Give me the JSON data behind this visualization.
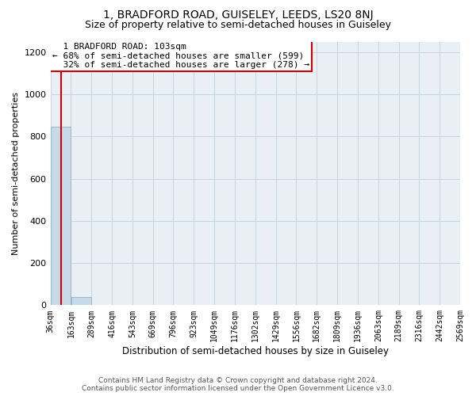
{
  "title": "1, BRADFORD ROAD, GUISELEY, LEEDS, LS20 8NJ",
  "subtitle": "Size of property relative to semi-detached houses in Guiseley",
  "xlabel": "Distribution of semi-detached houses by size in Guiseley",
  "ylabel": "Number of semi-detached properties",
  "footer_line1": "Contains HM Land Registry data © Crown copyright and database right 2024.",
  "footer_line2": "Contains public sector information licensed under the Open Government Licence v3.0.",
  "annotation_line1": "  1 BRADFORD ROAD: 103sqm",
  "annotation_line2": "← 68% of semi-detached houses are smaller (599)",
  "annotation_line3": "  32% of semi-detached houses are larger (278) →",
  "marker_value": 103,
  "bar_edges": [
    36,
    163,
    289,
    416,
    543,
    669,
    796,
    923,
    1049,
    1176,
    1302,
    1429,
    1556,
    1682,
    1809,
    1936,
    2063,
    2189,
    2316,
    2442,
    2569
  ],
  "bar_heights": [
    847,
    40,
    0,
    0,
    0,
    0,
    0,
    0,
    0,
    0,
    0,
    0,
    0,
    0,
    0,
    0,
    0,
    0,
    0,
    0
  ],
  "bar_color": "#c8d9e8",
  "bar_edgecolor": "#9ab5cc",
  "marker_color": "#cc0000",
  "annotation_box_edgecolor": "#cc0000",
  "ylim": [
    0,
    1250
  ],
  "yticks": [
    0,
    200,
    400,
    600,
    800,
    1000,
    1200
  ],
  "xtick_labels": [
    "36sqm",
    "163sqm",
    "289sqm",
    "416sqm",
    "543sqm",
    "669sqm",
    "796sqm",
    "923sqm",
    "1049sqm",
    "1176sqm",
    "1302sqm",
    "1429sqm",
    "1556sqm",
    "1682sqm",
    "1809sqm",
    "1936sqm",
    "2063sqm",
    "2189sqm",
    "2316sqm",
    "2442sqm",
    "2569sqm"
  ],
  "grid_color": "#c8d4de",
  "background_color": "#ffffff",
  "title_fontsize": 10,
  "subtitle_fontsize": 9,
  "annotation_fontsize": 8
}
